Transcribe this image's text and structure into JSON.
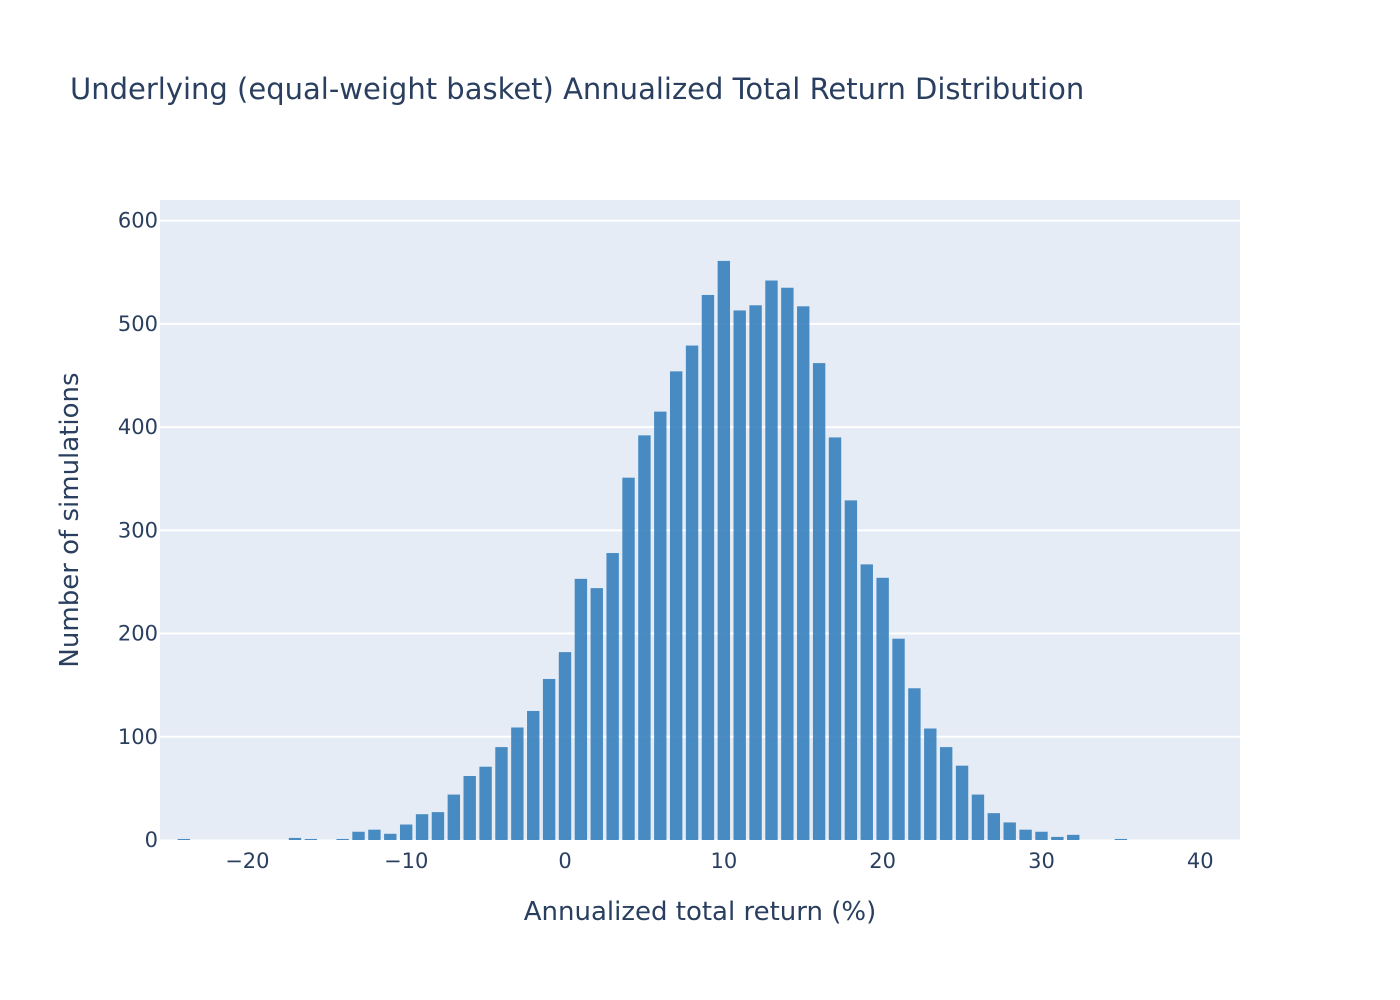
{
  "chart_data": {
    "type": "bar",
    "title": "Underlying (equal-weight basket) Annualized Total Return Distribution",
    "xlabel": "Annualized total return (%)",
    "ylabel": "Number of simulations",
    "xlim": [
      -25.5,
      42.5
    ],
    "ylim": [
      0,
      620
    ],
    "bin_width": 1,
    "x_ticks": [
      -20,
      -10,
      0,
      10,
      20,
      30,
      40
    ],
    "x_tick_labels": [
      "−20",
      "−10",
      "0",
      "10",
      "20",
      "30",
      "40"
    ],
    "y_ticks": [
      0,
      100,
      200,
      300,
      400,
      500,
      600
    ],
    "y_tick_labels": [
      "0",
      "100",
      "200",
      "300",
      "400",
      "500",
      "600"
    ],
    "grid": true,
    "colors": {
      "bar": "#3b82be",
      "plot_bg": "#e5ecf6",
      "grid": "#ffffff",
      "text": "#2a3f5f"
    },
    "x": [
      -24,
      -23,
      -22,
      -21,
      -20,
      -19,
      -18,
      -17,
      -16,
      -15,
      -14,
      -13,
      -12,
      -11,
      -10,
      -9,
      -8,
      -7,
      -6,
      -5,
      -4,
      -3,
      -2,
      -1,
      0,
      1,
      2,
      3,
      4,
      5,
      6,
      7,
      8,
      9,
      10,
      11,
      12,
      13,
      14,
      15,
      16,
      17,
      18,
      19,
      20,
      21,
      22,
      23,
      24,
      25,
      26,
      27,
      28,
      29,
      30,
      31,
      32,
      33,
      34,
      35,
      36,
      37,
      38,
      39,
      40,
      41,
      42
    ],
    "values": [
      1,
      0,
      0,
      0,
      0,
      0,
      0,
      2,
      1,
      0,
      1,
      8,
      10,
      6,
      15,
      25,
      27,
      44,
      62,
      71,
      90,
      109,
      125,
      156,
      182,
      253,
      244,
      278,
      351,
      392,
      415,
      454,
      479,
      528,
      561,
      513,
      518,
      542,
      535,
      517,
      462,
      390,
      329,
      267,
      254,
      195,
      147,
      108,
      90,
      72,
      44,
      26,
      17,
      10,
      8,
      3,
      5,
      0,
      0,
      1,
      0,
      0,
      0,
      0,
      0,
      0,
      0
    ]
  }
}
